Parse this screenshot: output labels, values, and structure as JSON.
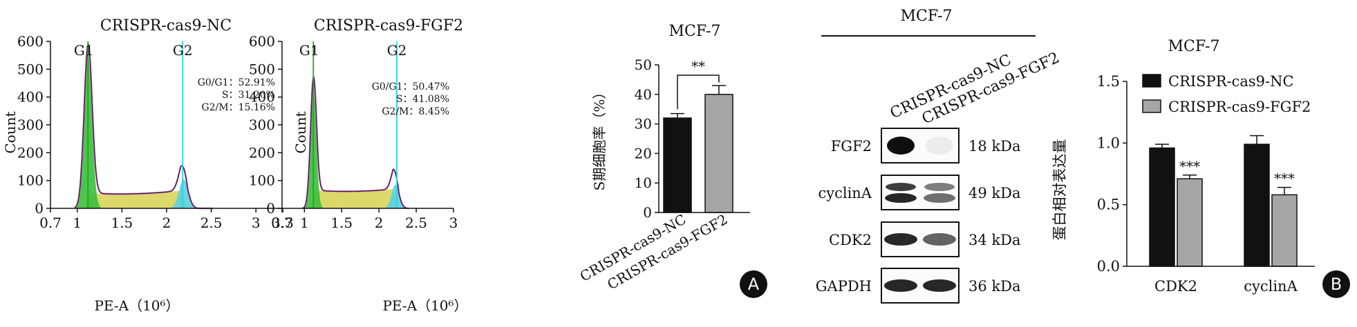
{
  "colors": {
    "g1_fill": "#3bbf3b",
    "s_fill": "#d8d45a",
    "g2_fill": "#5ad2e0",
    "envelope": "#c040c0",
    "marker_g1": "#1aa81a",
    "marker_g2": "#2ad0e6",
    "bar_nc": "#111111",
    "bar_fgf2": "#a6a6a6"
  },
  "panel_labels": {
    "a": "A",
    "b": "B"
  },
  "chart_data": [
    {
      "type": "area",
      "title": "CRISPR-cas9-NC",
      "xlabel": "PE-A（10⁶）",
      "ylabel": "Count",
      "xlim": [
        0.7,
        3.3
      ],
      "ylim": [
        0,
        600
      ],
      "x_ticks": [
        "0.7",
        "1",
        "1.5",
        "2",
        "2.5",
        "3",
        "3.3"
      ],
      "x_tick_values": [
        0.7,
        1,
        1.5,
        2,
        2.5,
        3,
        3.3
      ],
      "y_ticks": [
        "0",
        "100",
        "200",
        "300",
        "400",
        "500",
        "600"
      ],
      "y_tick_values": [
        0,
        100,
        200,
        300,
        400,
        500,
        600
      ],
      "markers": [
        {
          "label": "G1",
          "x": 1.12
        },
        {
          "label": "G2",
          "x": 2.18
        }
      ],
      "stats": [
        "G0/G1：52.91%",
        "S：31.20%",
        "G2/M：15.16%"
      ],
      "g1": {
        "center": 1.12,
        "height": 555,
        "width": 0.045
      },
      "g2": {
        "center": 2.19,
        "height": 105,
        "width": 0.05
      },
      "s_phase": {
        "from": 1.12,
        "to": 2.19,
        "start": 55,
        "mid": 45,
        "end": 65
      },
      "x_range": [
        0.97,
        2.52
      ]
    },
    {
      "type": "area",
      "title": "CRISPR-cas9-FGF2",
      "xlabel": "PE-A（10⁶）",
      "ylabel": "Count",
      "xlim": [
        0.7,
        3
      ],
      "ylim": [
        0,
        600
      ],
      "x_ticks": [
        "0.7",
        "1",
        "1.5",
        "2",
        "2.5",
        "3"
      ],
      "x_tick_values": [
        0.7,
        1,
        1.5,
        2,
        2.5,
        3
      ],
      "y_ticks": [
        "0",
        "100",
        "200",
        "300",
        "400",
        "500",
        "600"
      ],
      "y_tick_values": [
        0,
        100,
        200,
        300,
        400,
        500,
        600
      ],
      "markers": [
        {
          "label": "G1",
          "x": 1.12
        },
        {
          "label": "G2",
          "x": 2.24
        }
      ],
      "stats": [
        "G0/G1：50.47%",
        "S：41.08%",
        "G2/M：8.45%"
      ],
      "g1": {
        "center": 1.12,
        "height": 430,
        "width": 0.04
      },
      "g2": {
        "center": 2.22,
        "height": 85,
        "width": 0.05
      },
      "s_phase": {
        "from": 1.12,
        "to": 2.22,
        "start": 65,
        "mid": 55,
        "end": 70
      },
      "x_range": [
        0.97,
        2.4
      ]
    },
    {
      "type": "bar",
      "title": "MCF-7",
      "ylabel": "S期细胞率（%）",
      "categories": [
        "CRISPR-cas9-NC",
        "CRISPR-cas9-FGF2"
      ],
      "values": [
        32,
        40
      ],
      "errors": [
        1.5,
        3
      ],
      "ylim": [
        0,
        50
      ],
      "y_ticks": [
        "0",
        "10",
        "20",
        "30",
        "40",
        "50"
      ],
      "y_tick_values": [
        0,
        10,
        20,
        30,
        40,
        50
      ],
      "significance": "**"
    },
    {
      "type": "bar",
      "title": "MCF-7",
      "ylabel": "蛋白相对表达量",
      "categories": [
        "CDK2",
        "cyclinA"
      ],
      "series": [
        {
          "name": "CRISPR-cas9-NC",
          "values": [
            0.96,
            0.99
          ],
          "errors": [
            0.03,
            0.07
          ]
        },
        {
          "name": "CRISPR-cas9-FGF2",
          "values": [
            0.71,
            0.58
          ],
          "errors": [
            0.03,
            0.06
          ]
        }
      ],
      "ylim": [
        0,
        1.5
      ],
      "y_ticks": [
        "0.0",
        "0.5",
        "1.0",
        "1.5"
      ],
      "y_tick_values": [
        0,
        0.5,
        1.0,
        1.5
      ],
      "significance": [
        "***",
        "***"
      ],
      "legend": "top-left"
    }
  ],
  "western_blot": {
    "title": "MCF-7",
    "lanes": [
      "CRISPR-cas9-NC",
      "CRISPR-cas9-FGF2"
    ],
    "bands": [
      {
        "name": "FGF2",
        "kda": "18 kDa",
        "intensities": [
          1.0,
          0.08
        ]
      },
      {
        "name": "cyclinA",
        "kda": "49 kDa",
        "intensities": [
          0.9,
          0.6
        ]
      },
      {
        "name": "CDK2",
        "kda": "34 kDa",
        "intensities": [
          0.9,
          0.65
        ]
      },
      {
        "name": "GAPDH",
        "kda": "36 kDa",
        "intensities": [
          0.9,
          0.9
        ]
      }
    ]
  }
}
